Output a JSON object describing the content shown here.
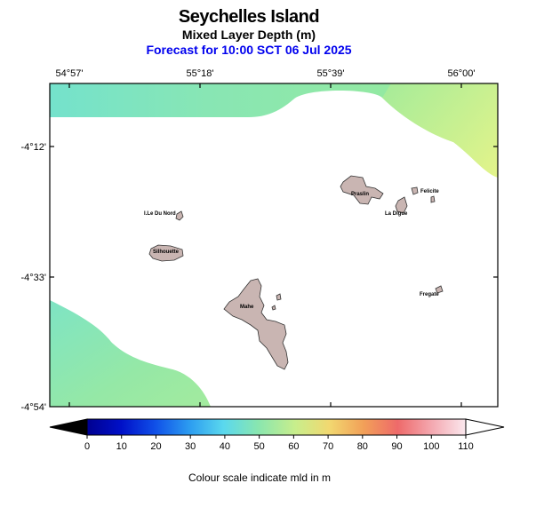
{
  "header": {
    "title": "Seychelles Island",
    "subtitle": "Mixed Layer Depth (m)",
    "forecast": "Forecast for  10:00 SCT 06 Jul 2025"
  },
  "map": {
    "lon_labels": [
      "54°57'",
      "55°18'",
      "55°39'",
      "56°00'"
    ],
    "lat_labels": [
      "-4°12'",
      "-4°33'",
      "-4°54'"
    ],
    "islands": {
      "ile_du_nord": "I.Le Du Nord",
      "silhouette": "Silhouette",
      "praslin": "Praslin",
      "felicite": "Felicite",
      "la_digue": "La Digue",
      "fregate": "Fregate",
      "mahe": "Mahe"
    },
    "colors": {
      "land": "#c9b5b2",
      "field_low": "#7de3c8",
      "field_mid": "#93e9a2",
      "field_high": "#e0f28c"
    }
  },
  "colorbar": {
    "ticks": [
      "0",
      "10",
      "20",
      "30",
      "40",
      "50",
      "60",
      "70",
      "80",
      "90",
      "100",
      "110"
    ],
    "min": 0,
    "max": 110,
    "caption": "Colour scale indicate mld in m"
  }
}
